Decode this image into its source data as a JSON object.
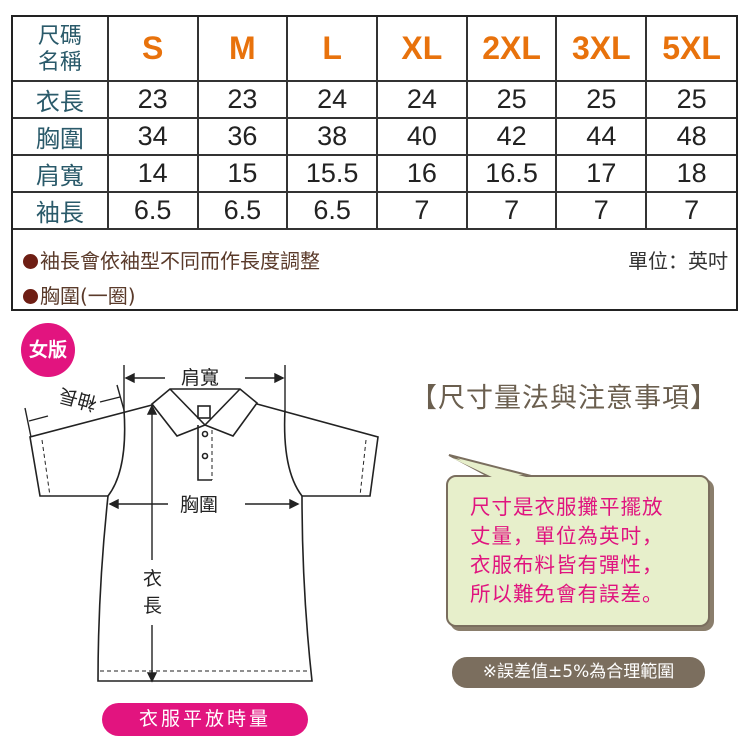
{
  "table": {
    "header_label": [
      "尺碼",
      "名稱"
    ],
    "sizes": [
      "S",
      "M",
      "L",
      "XL",
      "2XL",
      "3XL",
      "5XL"
    ],
    "rows": [
      {
        "label": "衣長",
        "values": [
          "23",
          "23",
          "24",
          "24",
          "25",
          "25",
          "25"
        ]
      },
      {
        "label": "胸圍",
        "values": [
          "34",
          "36",
          "38",
          "40",
          "42",
          "44",
          "48"
        ]
      },
      {
        "label": "肩寬",
        "values": [
          "14",
          "15",
          "15.5",
          "16",
          "16.5",
          "17",
          "18"
        ]
      },
      {
        "label": "袖長",
        "values": [
          "6.5",
          "6.5",
          "6.5",
          "7",
          "7",
          "7",
          "7"
        ]
      }
    ]
  },
  "notes": [
    "袖長會依袖型不同而作長度調整",
    "胸圍(一圈)"
  ],
  "unit": "單位：英吋",
  "diagram": {
    "badge": "女版",
    "shoulder": "肩寬",
    "sleeve": "袖長",
    "chest": "胸圍",
    "length_1": "衣",
    "length_2": "長",
    "caption": "衣服平放時量"
  },
  "info": {
    "title": "【尺寸量法與注意事項】",
    "bubble_lines": [
      "尺寸是衣服攤平擺放",
      "丈量，單位為英吋，",
      "衣服布料皆有彈性，",
      "所以難免會有誤差。"
    ],
    "tolerance": "※誤差值±5%為合理範圍"
  },
  "colors": {
    "size_header": "#e8720c",
    "label": "#2a5a6a",
    "pink": "#e2147f",
    "brown": "#7b6e5e",
    "bubble": "#e7efcb"
  }
}
